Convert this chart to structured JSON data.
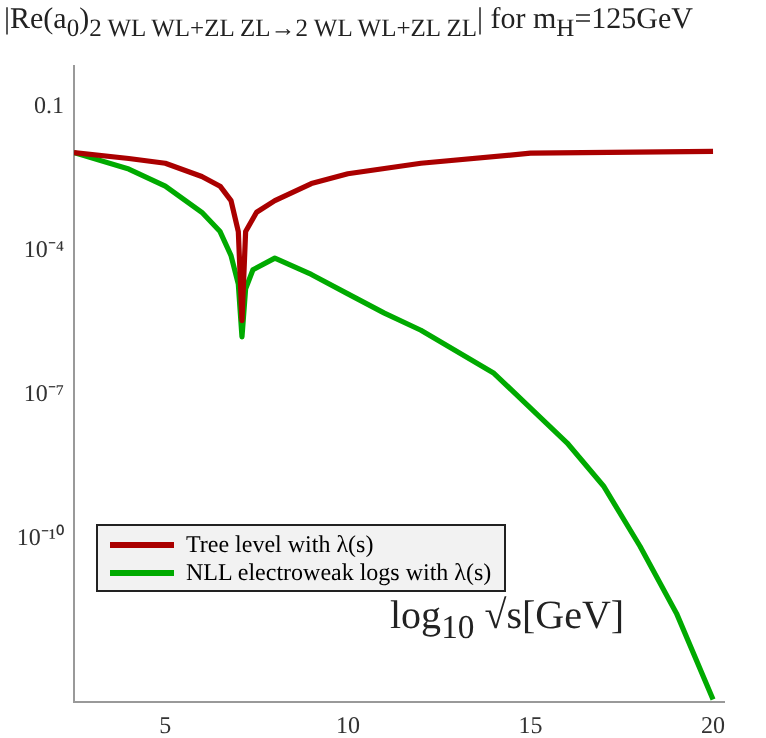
{
  "chart_data": {
    "type": "line",
    "title": "|Re(a$_{0}$)$_{2 WL WL+ZL ZL→2 WL WL+ZL ZL}$| for m$_{H}$=125GeV",
    "xlabel": "log$_{10}$ √s[GeV]",
    "series": [
      {
        "name": "Tree level with λ(s)",
        "color": "#aa0000",
        "x": [
          2.5,
          4,
          5,
          6,
          6.5,
          6.8,
          7.0,
          7.1,
          7.2,
          7.5,
          8,
          9,
          10,
          12,
          15,
          20
        ],
        "values": [
          0.011,
          0.0083,
          0.0066,
          0.0035,
          0.0022,
          0.0011,
          0.00025,
          3.5e-06,
          0.00025,
          0.00063,
          0.0011,
          0.0025,
          0.004,
          0.0066,
          0.0107,
          0.0117
        ]
      },
      {
        "name": "NLL electroweak logs with λ(s)",
        "color": "#00aa00",
        "x": [
          2.5,
          4,
          5,
          6,
          6.5,
          6.8,
          7.0,
          7.1,
          7.2,
          7.4,
          8,
          9,
          10,
          11,
          12,
          14,
          16,
          17,
          18,
          19,
          20
        ],
        "values": [
          0.011,
          0.005,
          0.0022,
          0.00063,
          0.00025,
          7.9e-05,
          2e-05,
          1.6e-06,
          1.6e-05,
          4e-05,
          7e-05,
          3.2e-05,
          1.26e-05,
          5e-06,
          2.2e-06,
          2.8e-07,
          1e-08,
          1.26e-09,
          7e-11,
          2.8e-12,
          4.5e-14
        ]
      }
    ],
    "xlim": [
      2.5,
      20.3
    ],
    "xticks": [
      5,
      10,
      15,
      20
    ],
    "ylim": [
      4e-14,
      0.7
    ],
    "yticks": [
      0.1,
      {
        "value": 0.0001,
        "label": "10⁻⁴"
      },
      {
        "value": 1e-07,
        "label": "10⁻⁷"
      },
      {
        "value": 1e-10,
        "label": "10⁻¹⁰"
      }
    ],
    "log": true,
    "grid": false,
    "legend": "bottom left",
    "marker": "none",
    "line_style": "solid"
  }
}
